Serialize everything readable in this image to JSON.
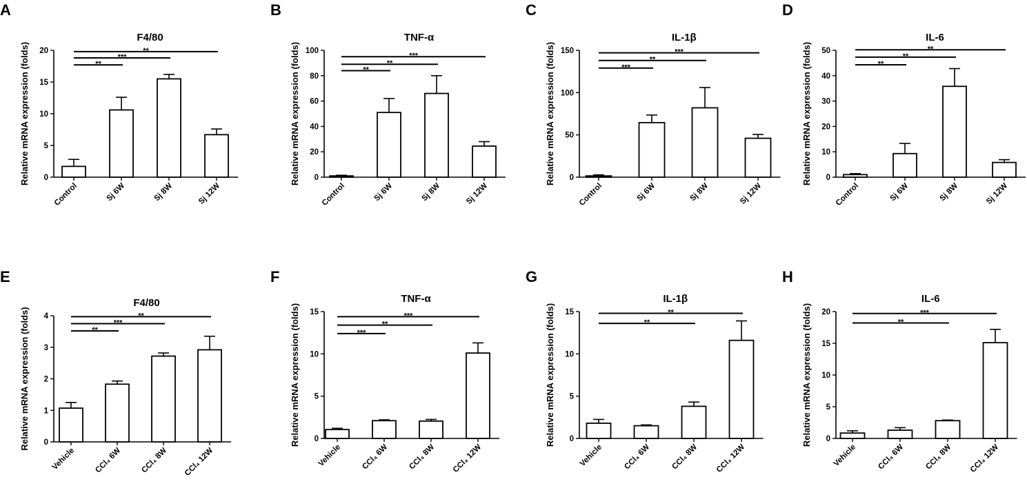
{
  "chart_data": [
    {
      "panel": "A",
      "type": "bar",
      "title": "F4/80",
      "ylabel": "Relative mRNA expression (folds)",
      "categories": [
        "Control",
        "Sj 6W",
        "Sj 8W",
        "Sj 12W"
      ],
      "values": [
        1.7,
        10.6,
        15.5,
        6.7
      ],
      "errors": [
        1.1,
        2.0,
        0.7,
        0.9
      ],
      "ylim": [
        0,
        20
      ],
      "yticks": [
        0,
        5,
        10,
        15,
        20
      ],
      "significance": [
        {
          "from": 0,
          "to": 1,
          "y": 17.7,
          "label": "**"
        },
        {
          "from": 0,
          "to": 2,
          "y": 18.8,
          "label": "***"
        },
        {
          "from": 0,
          "to": 3,
          "y": 19.8,
          "label": "**"
        }
      ]
    },
    {
      "panel": "B",
      "type": "bar",
      "title": "TNF-α",
      "ylabel": "Relative mRNA expression (folds)",
      "categories": [
        "Control",
        "Sj 6W",
        "Sj 8W",
        "Sj 12W"
      ],
      "values": [
        1,
        51,
        66,
        24.5
      ],
      "errors": [
        0.5,
        11,
        14,
        3.5
      ],
      "ylim": [
        0,
        100
      ],
      "yticks": [
        0,
        20,
        40,
        60,
        80,
        100
      ],
      "significance": [
        {
          "from": 0,
          "to": 1,
          "y": 84,
          "label": "**"
        },
        {
          "from": 0,
          "to": 2,
          "y": 89,
          "label": "**"
        },
        {
          "from": 0,
          "to": 3,
          "y": 95,
          "label": "***"
        }
      ]
    },
    {
      "panel": "C",
      "type": "bar",
      "title": "IL-1β",
      "ylabel": "Relative mRNA expression (folds)",
      "categories": [
        "Control",
        "Sj 6W",
        "Sj 8W",
        "Sj 12W"
      ],
      "values": [
        1.5,
        64.5,
        82,
        46
      ],
      "errors": [
        1.2,
        9,
        24,
        4.5
      ],
      "ylim": [
        0,
        150
      ],
      "yticks": [
        0,
        50,
        100,
        150
      ],
      "significance": [
        {
          "from": 0,
          "to": 1,
          "y": 129,
          "label": "***"
        },
        {
          "from": 0,
          "to": 2,
          "y": 138,
          "label": "**"
        },
        {
          "from": 0,
          "to": 3,
          "y": 147,
          "label": "***"
        }
      ]
    },
    {
      "panel": "D",
      "type": "bar",
      "title": "IL-6",
      "ylabel": "Relative mRNA expression (folds)",
      "categories": [
        "Control",
        "Sj 6W",
        "Sj 8W",
        "Sj 12W"
      ],
      "values": [
        1,
        9.3,
        35.8,
        5.8
      ],
      "errors": [
        0.4,
        4,
        7,
        1.1
      ],
      "ylim": [
        0,
        50
      ],
      "yticks": [
        0,
        10,
        20,
        30,
        40,
        50
      ],
      "significance": [
        {
          "from": 0,
          "to": 1,
          "y": 44.3,
          "label": "**"
        },
        {
          "from": 0,
          "to": 2,
          "y": 47.3,
          "label": "**"
        },
        {
          "from": 0,
          "to": 3,
          "y": 50.2,
          "label": "**"
        }
      ]
    },
    {
      "panel": "E",
      "type": "bar",
      "title": "F4/80",
      "ylabel": "Relative mRNA expression (folds)",
      "categories": [
        "Vehicle",
        "CCl₄ 6W",
        "CCl₄ 8W",
        "CCl₄ 12W"
      ],
      "values": [
        1.07,
        1.83,
        2.72,
        2.92
      ],
      "errors": [
        0.18,
        0.1,
        0.1,
        0.43
      ],
      "ylim": [
        0,
        4
      ],
      "yticks": [
        0,
        1,
        2,
        3,
        4
      ],
      "significance": [
        {
          "from": 0,
          "to": 1,
          "y": 3.52,
          "label": "**"
        },
        {
          "from": 0,
          "to": 2,
          "y": 3.75,
          "label": "***"
        },
        {
          "from": 0,
          "to": 3,
          "y": 3.97,
          "label": "**"
        }
      ]
    },
    {
      "panel": "F",
      "type": "bar",
      "title": "TNF-α",
      "ylabel": "Relative mRNA expression (folds)",
      "categories": [
        "Vehicle",
        "CCl₄ 6W",
        "CCl₄ 8W",
        "CCl₄ 12W"
      ],
      "values": [
        1.05,
        2.1,
        2.05,
        10.1
      ],
      "errors": [
        0.15,
        0.1,
        0.2,
        1.2
      ],
      "ylim": [
        0,
        15
      ],
      "yticks": [
        0,
        5,
        10,
        15
      ],
      "significance": [
        {
          "from": 0,
          "to": 1,
          "y": 12.4,
          "label": "***"
        },
        {
          "from": 0,
          "to": 2,
          "y": 13.4,
          "label": "**"
        },
        {
          "from": 0,
          "to": 3,
          "y": 14.4,
          "label": "***"
        }
      ]
    },
    {
      "panel": "G",
      "type": "bar",
      "title": "IL-1β",
      "ylabel": "Relative mRNA expression (folds)",
      "categories": [
        "Vehicle",
        "CCl₄ 6W",
        "CCl₄ 8W",
        "CCl₄ 12W"
      ],
      "values": [
        1.8,
        1.5,
        3.8,
        11.6
      ],
      "errors": [
        0.45,
        0.1,
        0.5,
        2.3
      ],
      "ylim": [
        0,
        15
      ],
      "yticks": [
        0,
        5,
        10,
        15
      ],
      "significance": [
        {
          "from": 0,
          "to": 2,
          "y": 13.6,
          "label": "**"
        },
        {
          "from": 0,
          "to": 3,
          "y": 14.8,
          "label": "**"
        }
      ]
    },
    {
      "panel": "H",
      "type": "bar",
      "title": "IL-6",
      "ylabel": "Relative mRNA expression (folds)",
      "categories": [
        "Vehicle",
        "CCl₄ 6W",
        "CCl₄ 8W",
        "CCl₄ 12W"
      ],
      "values": [
        0.85,
        1.3,
        2.8,
        15.1
      ],
      "errors": [
        0.35,
        0.4,
        0.1,
        2.1
      ],
      "ylim": [
        0,
        20
      ],
      "yticks": [
        0,
        5,
        10,
        15,
        20
      ],
      "significance": [
        {
          "from": 0,
          "to": 2,
          "y": 18.2,
          "label": "**"
        },
        {
          "from": 0,
          "to": 3,
          "y": 19.7,
          "label": "***"
        }
      ]
    }
  ]
}
